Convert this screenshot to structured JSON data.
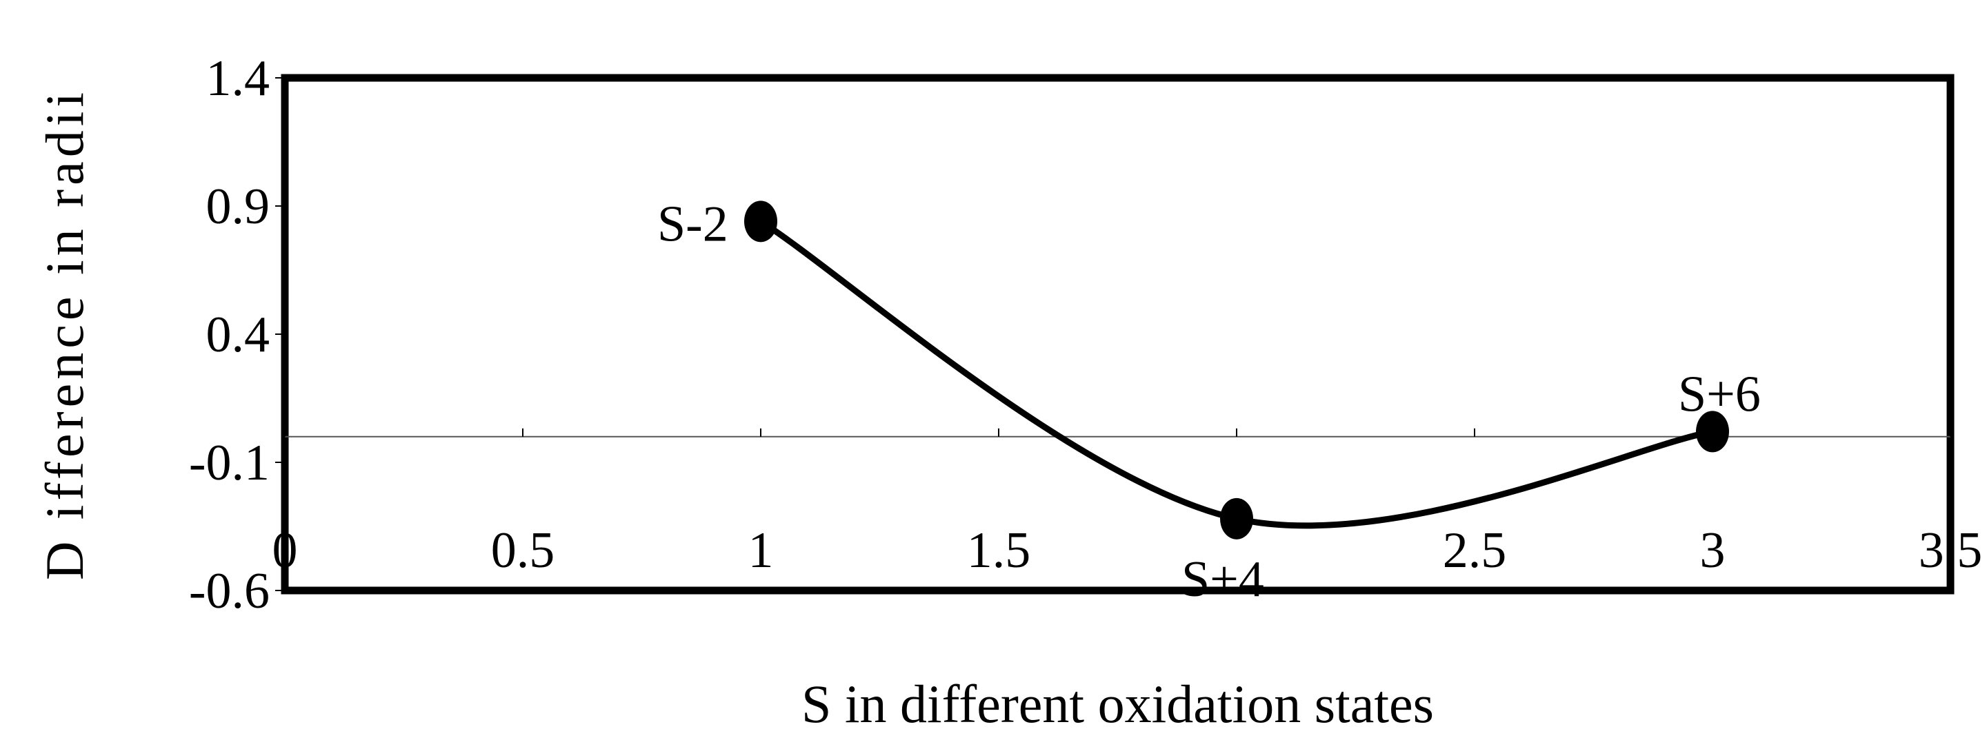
{
  "chart_data": {
    "type": "scatter",
    "xlabel": "S in different oxidation states",
    "ylabel": "D ifference in radii",
    "xlim": [
      0,
      3.5
    ],
    "ylim": [
      -0.6,
      1.4
    ],
    "x_ticks": [
      0,
      0.5,
      1,
      1.5,
      2,
      2.5,
      3,
      3.5
    ],
    "x_tick_labels": [
      "0",
      "0.5",
      "1",
      "1.5",
      "",
      "2.5",
      "3",
      "3.5"
    ],
    "y_ticks": [
      1.4,
      0.9,
      0.4,
      -0.1,
      -0.6
    ],
    "y_tick_labels": [
      "1.4",
      "0.9",
      "0.4",
      "-0.1",
      "-0.6"
    ],
    "x_axis_crossing_y": 0,
    "grid": false,
    "series": [
      {
        "smoothed": true,
        "color": "#000000",
        "points": [
          {
            "x": 1,
            "y": 0.84,
            "label": "S-2"
          },
          {
            "x": 2,
            "y": -0.32,
            "label": "S+4"
          },
          {
            "x": 3,
            "y": 0.02,
            "label": "S+6"
          }
        ]
      }
    ]
  }
}
